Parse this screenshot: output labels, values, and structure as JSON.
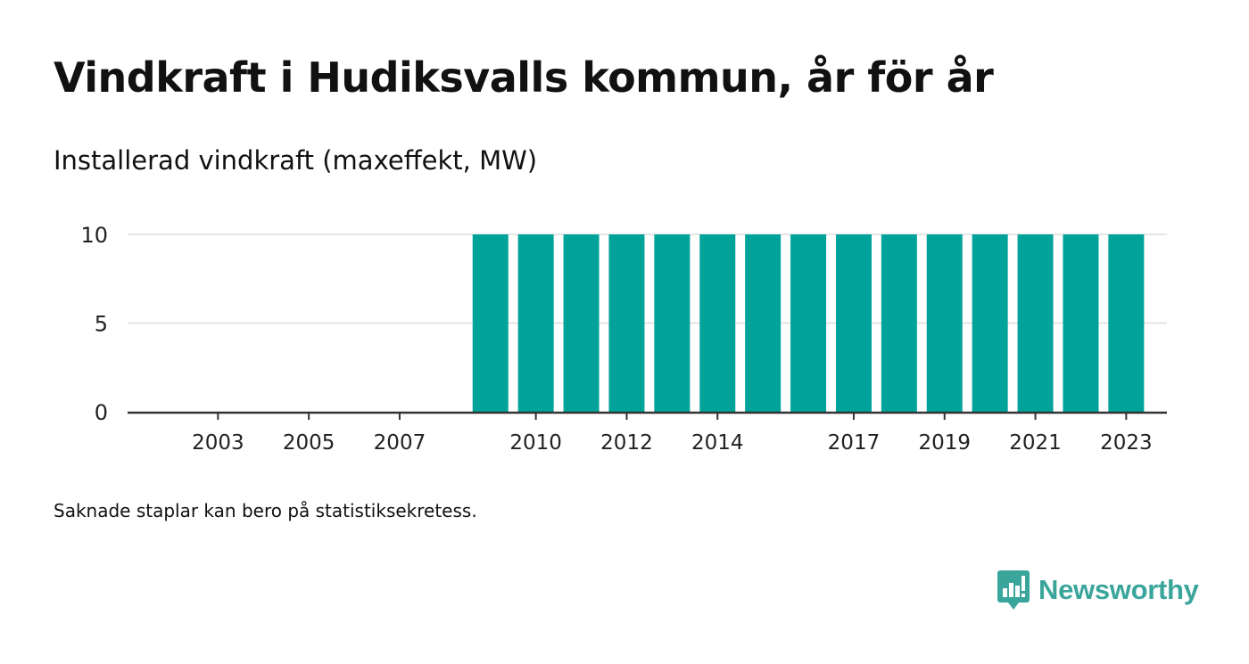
{
  "header": {
    "title": "Vindkraft i Hudiksvalls kommun, år för år",
    "subtitle": "Installerad vindkraft (maxeffekt, MW)"
  },
  "footer": {
    "note": "Saknade staplar kan bero på statistiksekretess.",
    "brand": "Newsworthy",
    "brand_icon": "bar-chart-speech-bubble-icon"
  },
  "colors": {
    "bar": "#00a39a",
    "grid": "#dddddd",
    "axis": "#333333",
    "brand": "#3aa59b"
  },
  "chart_data": {
    "type": "bar",
    "categories": [
      "2002",
      "2003",
      "2004",
      "2005",
      "2006",
      "2007",
      "2008",
      "2009",
      "2010",
      "2011",
      "2012",
      "2013",
      "2014",
      "2015",
      "2016",
      "2017",
      "2018",
      "2019",
      "2020",
      "2021",
      "2022",
      "2023"
    ],
    "values": [
      0,
      0,
      0,
      0,
      0,
      0,
      0,
      10,
      10,
      10,
      10,
      10,
      10,
      10,
      10,
      10,
      10,
      10,
      10,
      10,
      10,
      10
    ],
    "x_tick_labels": [
      "2003",
      "2005",
      "2007",
      "2010",
      "2012",
      "2014",
      "2017",
      "2019",
      "2021",
      "2023"
    ],
    "y_ticks": [
      0,
      5,
      10
    ],
    "ylim": [
      0,
      10
    ],
    "xlabel": "",
    "ylabel": "",
    "grid": true,
    "legend": "none"
  }
}
